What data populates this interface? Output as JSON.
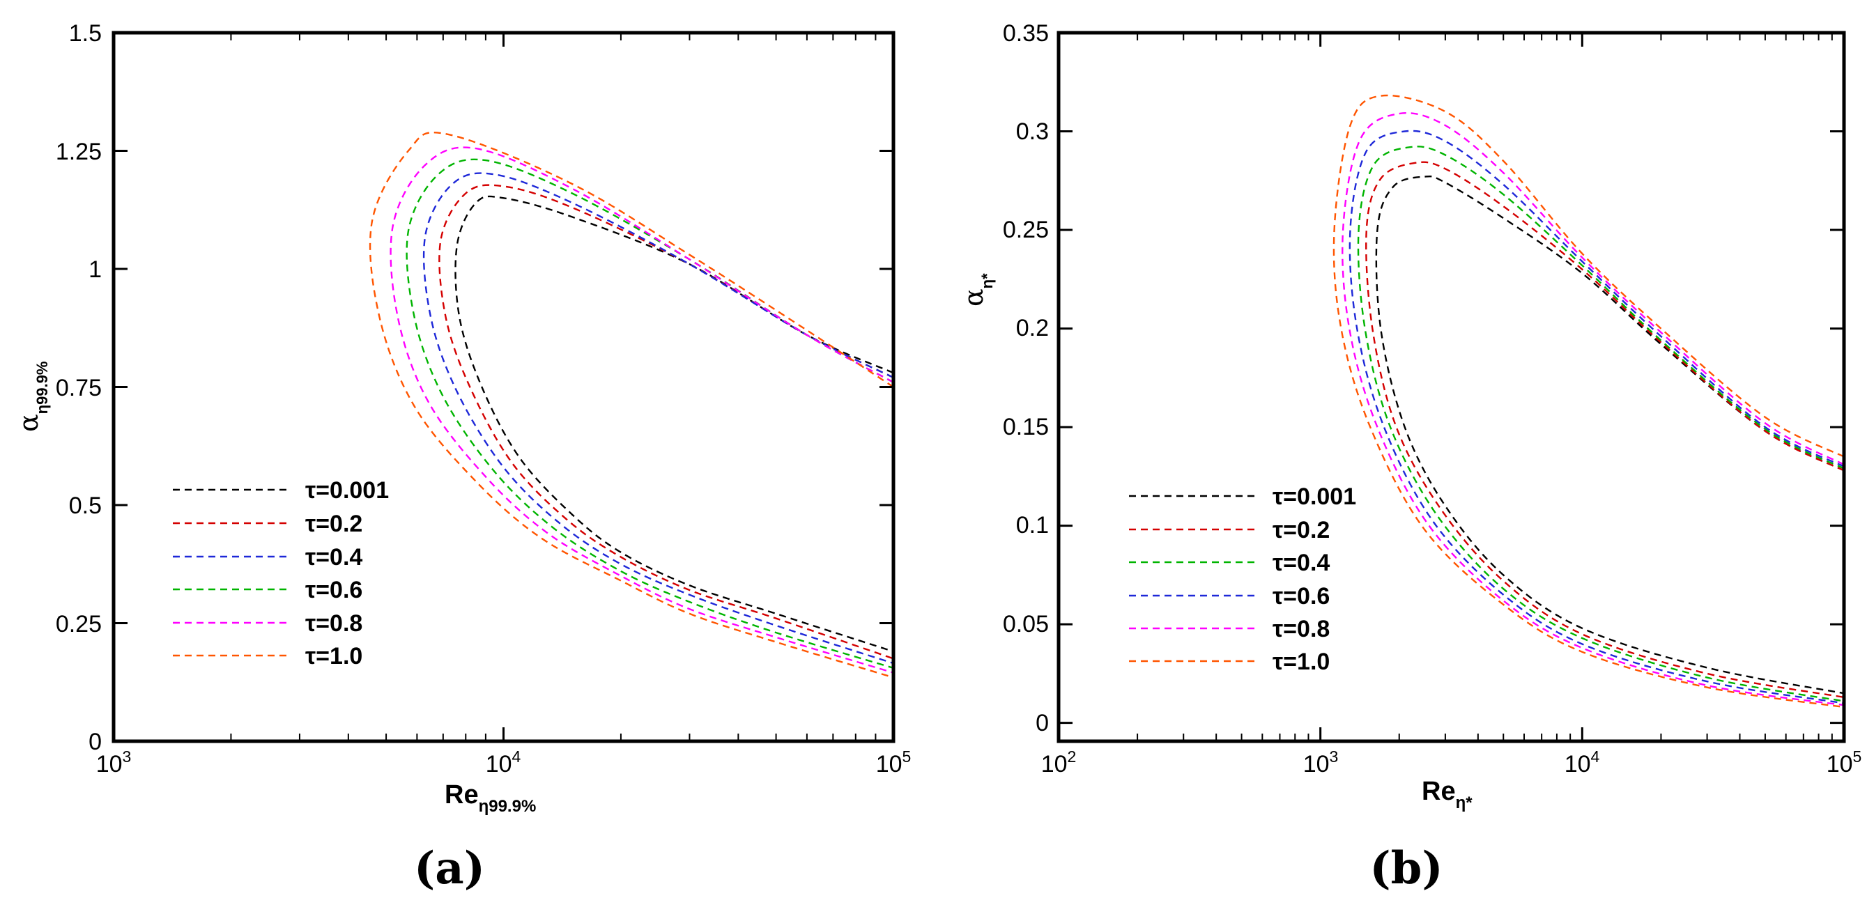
{
  "chart_data": [
    {
      "type": "line",
      "panel_label": "(a)",
      "xscale": "log",
      "xlim": [
        1000,
        100000
      ],
      "ylim": [
        0,
        1.5
      ],
      "xlabel_main": "Re",
      "xlabel_sub": "η99.9%",
      "ylabel_main": "α",
      "ylabel_sub": "η99.9%",
      "xticks": [
        {
          "base": "10",
          "exp": "3",
          "value": 1000
        },
        {
          "base": "10",
          "exp": "4",
          "value": 10000
        },
        {
          "base": "10",
          "exp": "5",
          "value": 100000
        }
      ],
      "yticks": [
        {
          "label": "0",
          "value": 0
        },
        {
          "label": "0.25",
          "value": 0.25
        },
        {
          "label": "0.5",
          "value": 0.5
        },
        {
          "label": "0.75",
          "value": 0.75
        },
        {
          "label": "1",
          "value": 1
        },
        {
          "label": "1.25",
          "value": 1.25
        },
        {
          "label": "1.5",
          "value": 1.5
        }
      ],
      "legend_position": "lower-left",
      "series": [
        {
          "name": "τ=0.001",
          "color": "#000000",
          "points": [
            [
              100000,
              0.78
            ],
            [
              60000,
              0.86
            ],
            [
              30000,
              1.01
            ],
            [
              15000,
              1.11
            ],
            [
              10000,
              1.15
            ],
            [
              8500,
              1.14
            ],
            [
              7600,
              1.05
            ],
            [
              7700,
              0.9
            ],
            [
              8800,
              0.75
            ],
            [
              11000,
              0.6
            ],
            [
              15000,
              0.48
            ],
            [
              20000,
              0.4
            ],
            [
              30000,
              0.33
            ],
            [
              50000,
              0.27
            ],
            [
              100000,
              0.19
            ]
          ]
        },
        {
          "name": "τ=0.2",
          "color": "#d40000",
          "points": [
            [
              100000,
              0.77
            ],
            [
              60000,
              0.86
            ],
            [
              30000,
              1.01
            ],
            [
              15000,
              1.13
            ],
            [
              10000,
              1.175
            ],
            [
              8000,
              1.16
            ],
            [
              6900,
              1.06
            ],
            [
              7100,
              0.9
            ],
            [
              8200,
              0.75
            ],
            [
              10500,
              0.59
            ],
            [
              14500,
              0.47
            ],
            [
              20000,
              0.39
            ],
            [
              30000,
              0.32
            ],
            [
              50000,
              0.26
            ],
            [
              100000,
              0.175
            ]
          ]
        },
        {
          "name": "τ=0.4",
          "color": "#1e28d8",
          "points": [
            [
              100000,
              0.77
            ],
            [
              60000,
              0.86
            ],
            [
              30000,
              1.01
            ],
            [
              15000,
              1.14
            ],
            [
              9500,
              1.2
            ],
            [
              7400,
              1.18
            ],
            [
              6300,
              1.07
            ],
            [
              6500,
              0.9
            ],
            [
              7600,
              0.74
            ],
            [
              10000,
              0.58
            ],
            [
              14000,
              0.46
            ],
            [
              20000,
              0.375
            ],
            [
              30000,
              0.31
            ],
            [
              50000,
              0.245
            ],
            [
              100000,
              0.165
            ]
          ]
        },
        {
          "name": "τ=0.6",
          "color": "#00b400",
          "points": [
            [
              100000,
              0.76
            ],
            [
              60000,
              0.86
            ],
            [
              30000,
              1.02
            ],
            [
              15000,
              1.16
            ],
            [
              9000,
              1.23
            ],
            [
              6800,
              1.2
            ],
            [
              5700,
              1.08
            ],
            [
              5900,
              0.9
            ],
            [
              7000,
              0.73
            ],
            [
              9500,
              0.57
            ],
            [
              13500,
              0.45
            ],
            [
              20000,
              0.36
            ],
            [
              30000,
              0.295
            ],
            [
              50000,
              0.23
            ],
            [
              100000,
              0.155
            ]
          ]
        },
        {
          "name": "τ=0.8",
          "color": "#ff00ff",
          "points": [
            [
              100000,
              0.76
            ],
            [
              60000,
              0.86
            ],
            [
              30000,
              1.02
            ],
            [
              15000,
              1.17
            ],
            [
              8500,
              1.255
            ],
            [
              6300,
              1.22
            ],
            [
              5200,
              1.09
            ],
            [
              5350,
              0.9
            ],
            [
              6400,
              0.72
            ],
            [
              9000,
              0.56
            ],
            [
              13000,
              0.44
            ],
            [
              20000,
              0.35
            ],
            [
              30000,
              0.28
            ],
            [
              50000,
              0.22
            ],
            [
              100000,
              0.145
            ]
          ]
        },
        {
          "name": "τ=1.0",
          "color": "#ff5500",
          "points": [
            [
              100000,
              0.75
            ],
            [
              60000,
              0.87
            ],
            [
              30000,
              1.03
            ],
            [
              15000,
              1.18
            ],
            [
              7200,
              1.285
            ],
            [
              5700,
              1.25
            ],
            [
              4600,
              1.1
            ],
            [
              4800,
              0.9
            ],
            [
              5900,
              0.71
            ],
            [
              8500,
              0.55
            ],
            [
              12500,
              0.43
            ],
            [
              20000,
              0.34
            ],
            [
              30000,
              0.27
            ],
            [
              50000,
              0.21
            ],
            [
              100000,
              0.135
            ]
          ]
        }
      ]
    },
    {
      "type": "line",
      "panel_label": "(b)",
      "xscale": "log",
      "xlim": [
        100,
        100000
      ],
      "ylim": [
        -0.0093,
        0.35
      ],
      "xlabel_main": "Re",
      "xlabel_sub": "η*",
      "ylabel_main": "α",
      "ylabel_sub": "η*",
      "xticks": [
        {
          "base": "10",
          "exp": "2",
          "value": 100
        },
        {
          "base": "10",
          "exp": "3",
          "value": 1000
        },
        {
          "base": "10",
          "exp": "4",
          "value": 10000
        },
        {
          "base": "10",
          "exp": "5",
          "value": 100000
        }
      ],
      "yticks": [
        {
          "label": "0",
          "value": 0
        },
        {
          "label": "0.05",
          "value": 0.05
        },
        {
          "label": "0.1",
          "value": 0.1
        },
        {
          "label": "0.15",
          "value": 0.15
        },
        {
          "label": "0.2",
          "value": 0.2
        },
        {
          "label": "0.25",
          "value": 0.25
        },
        {
          "label": "0.3",
          "value": 0.3
        },
        {
          "label": "0.35",
          "value": 0.35
        }
      ],
      "legend_position": "lower-left",
      "series": [
        {
          "name": "τ=0.001",
          "color": "#000000",
          "points": [
            [
              100000,
              0.128
            ],
            [
              50000,
              0.148
            ],
            [
              20000,
              0.192
            ],
            [
              10000,
              0.228
            ],
            [
              5000,
              0.256
            ],
            [
              3000,
              0.274
            ],
            [
              2500,
              0.277
            ],
            [
              1900,
              0.272
            ],
            [
              1650,
              0.25
            ],
            [
              1700,
              0.2
            ],
            [
              2100,
              0.15
            ],
            [
              3000,
              0.11
            ],
            [
              5000,
              0.075
            ],
            [
              10000,
              0.048
            ],
            [
              30000,
              0.028
            ],
            [
              100000,
              0.015
            ]
          ]
        },
        {
          "name": "τ=0.2",
          "color": "#d40000",
          "points": [
            [
              100000,
              0.128
            ],
            [
              50000,
              0.148
            ],
            [
              20000,
              0.193
            ],
            [
              10000,
              0.23
            ],
            [
              5000,
              0.262
            ],
            [
              3000,
              0.281
            ],
            [
              2300,
              0.284
            ],
            [
              1700,
              0.276
            ],
            [
              1500,
              0.25
            ],
            [
              1580,
              0.2
            ],
            [
              1950,
              0.15
            ],
            [
              2900,
              0.108
            ],
            [
              5000,
              0.072
            ],
            [
              10000,
              0.045
            ],
            [
              30000,
              0.025
            ],
            [
              100000,
              0.013
            ]
          ]
        },
        {
          "name": "τ=0.4",
          "color": "#00b400",
          "points": [
            [
              100000,
              0.129
            ],
            [
              50000,
              0.149
            ],
            [
              20000,
              0.194
            ],
            [
              10000,
              0.232
            ],
            [
              5000,
              0.268
            ],
            [
              3000,
              0.288
            ],
            [
              2200,
              0.292
            ],
            [
              1600,
              0.283
            ],
            [
              1400,
              0.25
            ],
            [
              1480,
              0.2
            ],
            [
              1850,
              0.15
            ],
            [
              2800,
              0.105
            ],
            [
              5000,
              0.068
            ],
            [
              10000,
              0.043
            ],
            [
              30000,
              0.023
            ],
            [
              100000,
              0.011
            ]
          ]
        },
        {
          "name": "τ=0.6",
          "color": "#1e28d8",
          "points": [
            [
              100000,
              0.13
            ],
            [
              50000,
              0.15
            ],
            [
              20000,
              0.196
            ],
            [
              10000,
              0.234
            ],
            [
              5000,
              0.273
            ],
            [
              3000,
              0.295
            ],
            [
              2100,
              0.3
            ],
            [
              1500,
              0.29
            ],
            [
              1300,
              0.25
            ],
            [
              1380,
              0.2
            ],
            [
              1750,
              0.15
            ],
            [
              2700,
              0.102
            ],
            [
              5000,
              0.065
            ],
            [
              10000,
              0.04
            ],
            [
              30000,
              0.021
            ],
            [
              100000,
              0.01
            ]
          ]
        },
        {
          "name": "τ=0.8",
          "color": "#ff00ff",
          "points": [
            [
              100000,
              0.131
            ],
            [
              50000,
              0.152
            ],
            [
              20000,
              0.198
            ],
            [
              10000,
              0.236
            ],
            [
              5000,
              0.279
            ],
            [
              3000,
              0.303
            ],
            [
              2000,
              0.309
            ],
            [
              1420,
              0.296
            ],
            [
              1220,
              0.25
            ],
            [
              1290,
              0.2
            ],
            [
              1650,
              0.15
            ],
            [
              2600,
              0.1
            ],
            [
              5000,
              0.062
            ],
            [
              10000,
              0.038
            ],
            [
              30000,
              0.019
            ],
            [
              100000,
              0.009
            ]
          ]
        },
        {
          "name": "τ=1.0",
          "color": "#ff5500",
          "points": [
            [
              100000,
              0.135
            ],
            [
              50000,
              0.155
            ],
            [
              20000,
              0.2
            ],
            [
              10000,
              0.238
            ],
            [
              5000,
              0.285
            ],
            [
              3000,
              0.31
            ],
            [
              1700,
              0.318
            ],
            [
              1300,
              0.303
            ],
            [
              1130,
              0.25
            ],
            [
              1200,
              0.2
            ],
            [
              1550,
              0.15
            ],
            [
              2500,
              0.098
            ],
            [
              5000,
              0.06
            ],
            [
              10000,
              0.036
            ],
            [
              30000,
              0.018
            ],
            [
              100000,
              0.008
            ]
          ]
        }
      ]
    }
  ]
}
